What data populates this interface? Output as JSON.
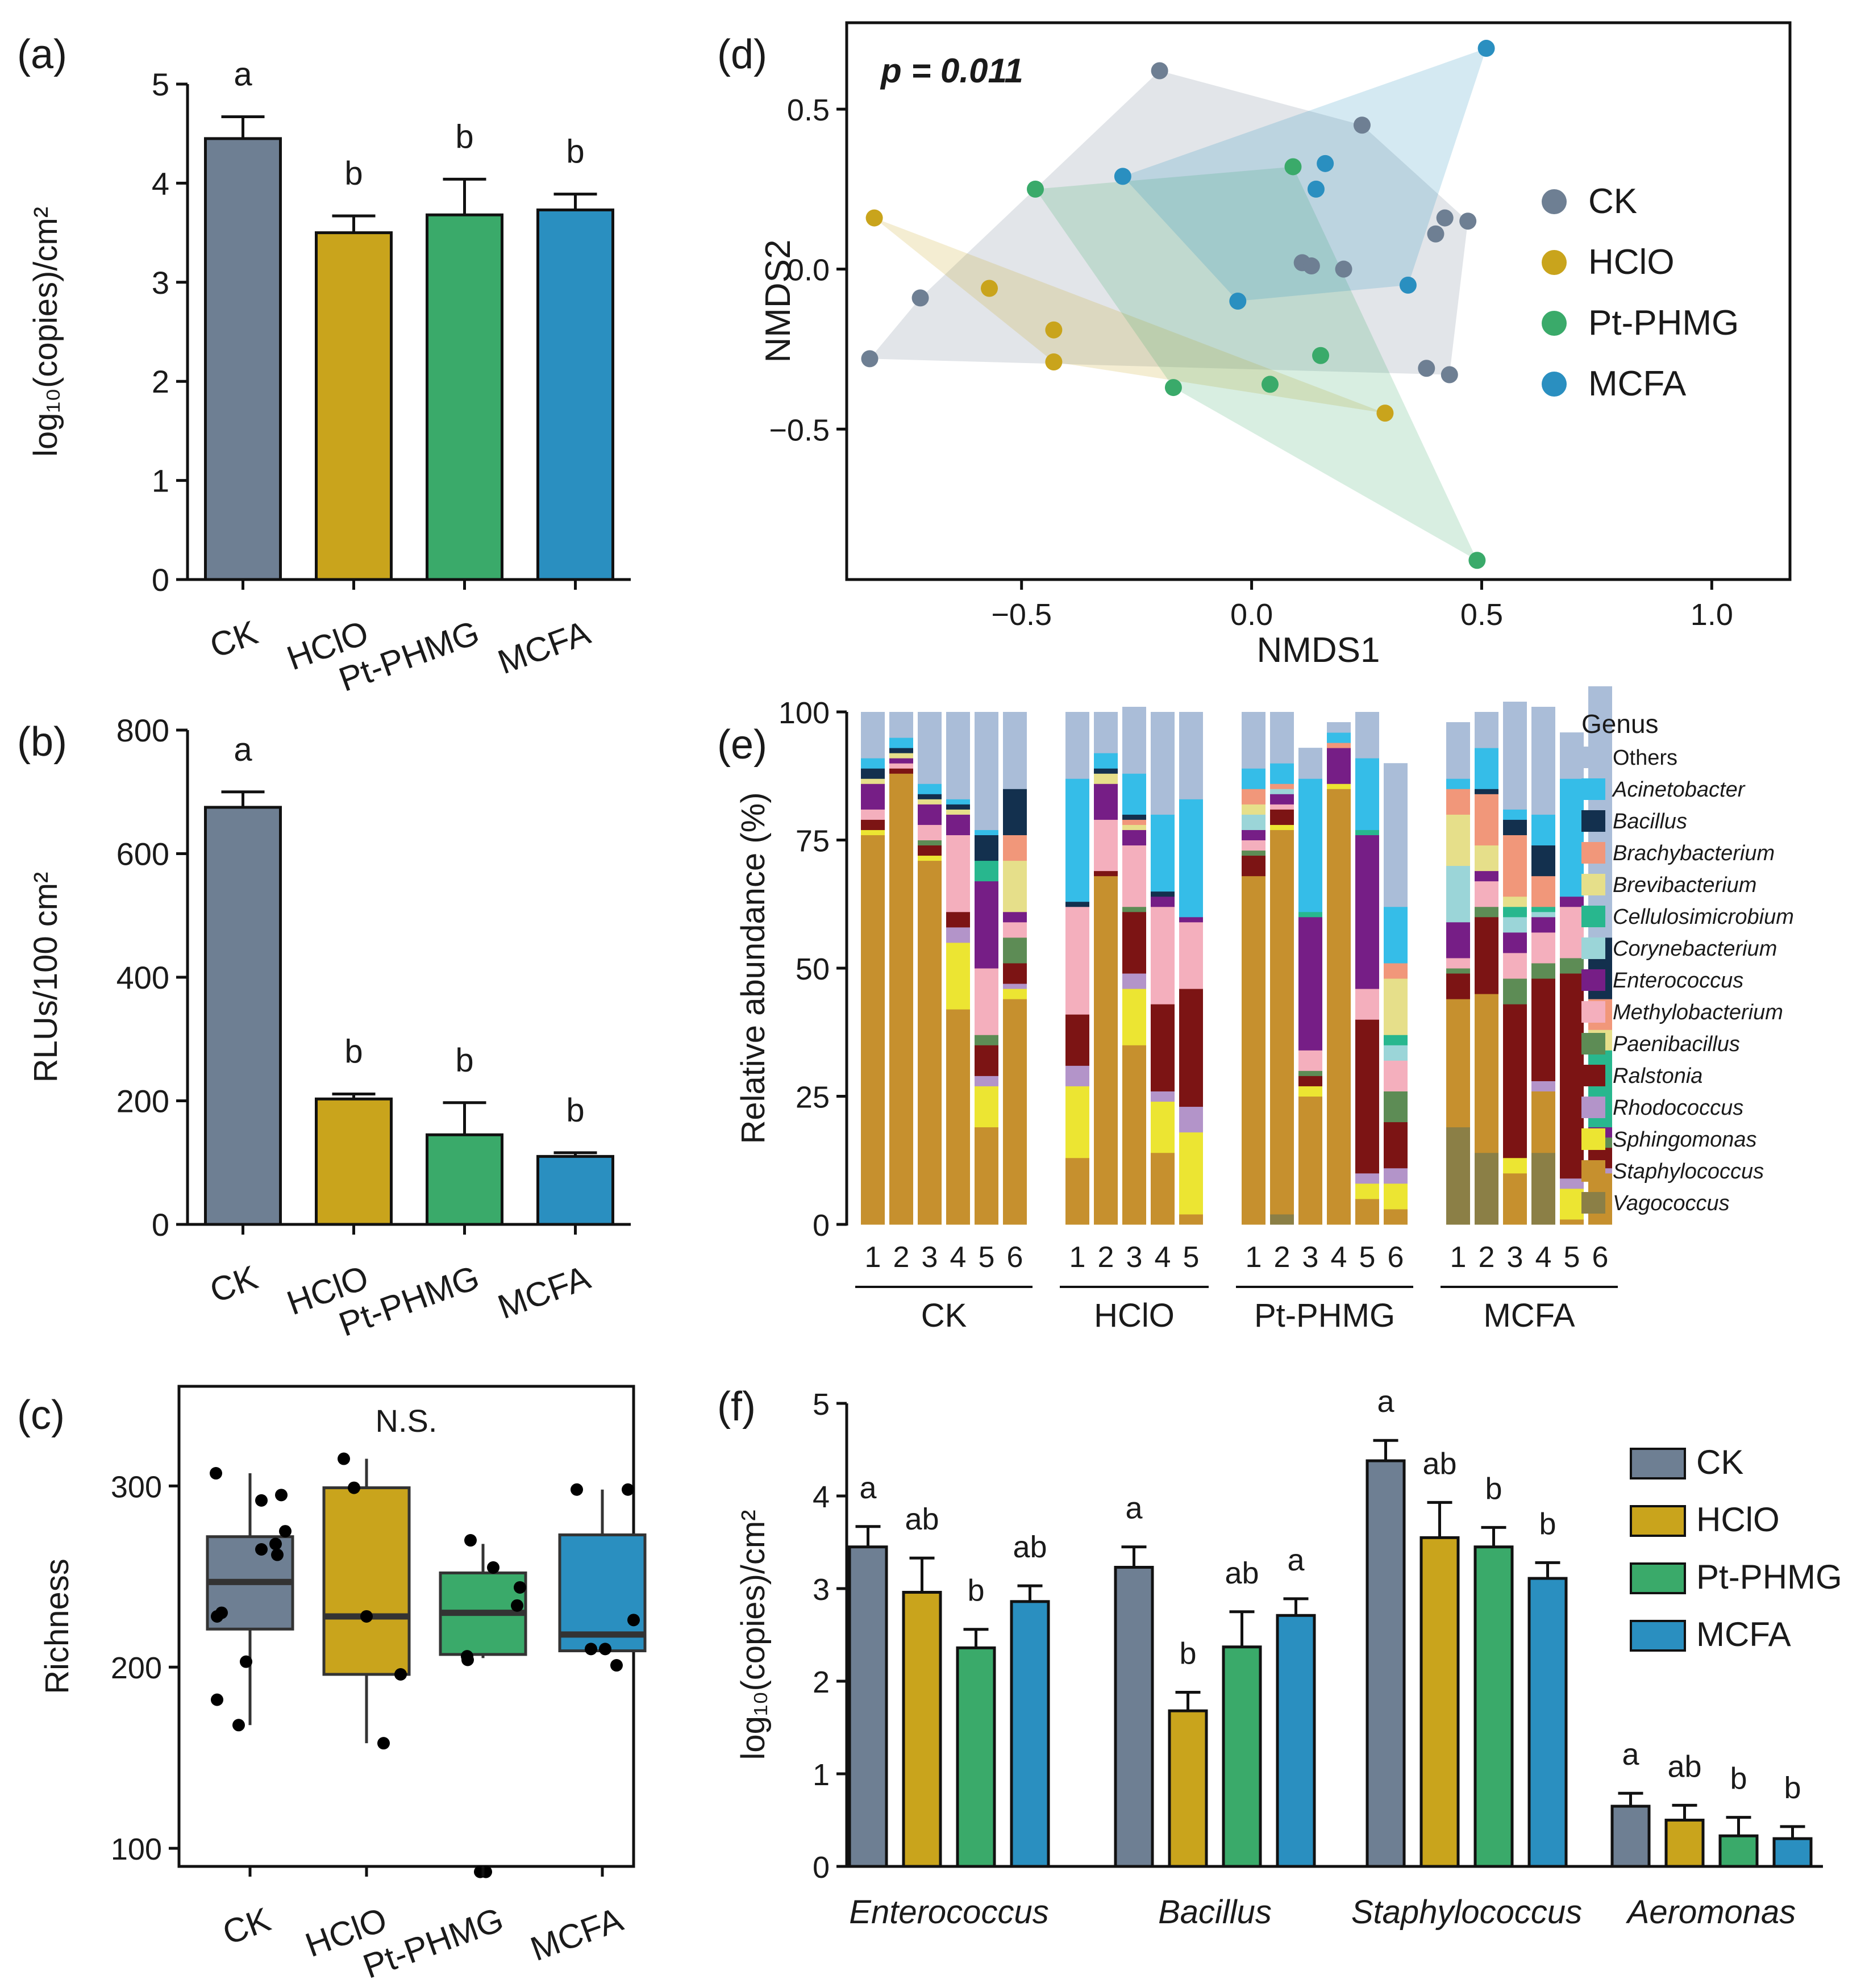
{
  "colors": {
    "CK": "#6e7f93",
    "HClO": "#c9a41c",
    "Pt-PHMG": "#3aaa6a",
    "MCFA": "#2a8fc0"
  },
  "chart_data": [
    {
      "panel": "(a)",
      "type": "bar",
      "ylabel": "log₁₀(copies)/cm²",
      "ylim": [
        0,
        5
      ],
      "yticks": [
        0,
        1,
        2,
        3,
        4,
        5
      ],
      "categories": [
        "CK",
        "HClO",
        "Pt-PHMG",
        "MCFA"
      ],
      "values": [
        4.45,
        3.5,
        3.68,
        3.73
      ],
      "errors": [
        0.22,
        0.17,
        0.36,
        0.16
      ],
      "letters": [
        "a",
        "b",
        "b",
        "b"
      ]
    },
    {
      "panel": "(b)",
      "type": "bar",
      "ylabel": "RLUs/100 cm²",
      "ylim": [
        0,
        800
      ],
      "yticks": [
        0,
        200,
        400,
        600,
        800
      ],
      "categories": [
        "CK",
        "HClO",
        "Pt-PHMG",
        "MCFA"
      ],
      "values": [
        675,
        203,
        145,
        110
      ],
      "errors": [
        25,
        8,
        52,
        6
      ],
      "letters": [
        "a",
        "b",
        "b",
        "b"
      ]
    },
    {
      "panel": "(c)",
      "type": "box",
      "ylabel": "Richness",
      "ylim": [
        90,
        355
      ],
      "yticks": [
        100,
        200,
        300
      ],
      "annotation": "N.S.",
      "categories": [
        "CK",
        "HClO",
        "Pt-PHMG",
        "MCFA"
      ],
      "boxes": [
        {
          "whisker_low": 168,
          "q1": 221,
          "median": 247,
          "q3": 272,
          "whisker_high": 307
        },
        {
          "whisker_low": 158,
          "q1": 196,
          "median": 228,
          "q3": 299,
          "whisker_high": 315
        },
        {
          "whisker_low": 205,
          "q1": 207,
          "median": 230,
          "q3": 252,
          "whisker_high": 268
        },
        {
          "whisker_low": 208,
          "q1": 209,
          "median": 218,
          "q3": 273,
          "whisker_high": 298
        }
      ],
      "points": [
        [
          307,
          295,
          292,
          275,
          268,
          265,
          262,
          230,
          228,
          203,
          182,
          168
        ],
        [
          315,
          299,
          228,
          196,
          158
        ],
        [
          270,
          255,
          244,
          234,
          206,
          204,
          87,
          87
        ],
        [
          298,
          298,
          226,
          210,
          210,
          201
        ]
      ]
    },
    {
      "panel": "(d)",
      "type": "scatter",
      "xlabel": "NMDS1",
      "ylabel": "NMDS2",
      "xlim": [
        -0.88,
        1.17
      ],
      "ylim": [
        -0.97,
        0.77
      ],
      "xticks": [
        -0.5,
        0.0,
        0.5,
        1.0
      ],
      "yticks": [
        -0.5,
        0.0,
        0.5
      ],
      "annotation": "p = 0.011",
      "series": [
        {
          "name": "CK",
          "points": [
            [
              -0.2,
              0.62
            ],
            [
              0.24,
              0.45
            ],
            [
              0.42,
              0.16
            ],
            [
              0.47,
              0.15
            ],
            [
              0.4,
              0.11
            ],
            [
              0.11,
              0.02
            ],
            [
              0.13,
              0.01
            ],
            [
              0.2,
              0.0
            ],
            [
              -0.72,
              -0.09
            ],
            [
              -0.83,
              -0.28
            ],
            [
              0.38,
              -0.31
            ],
            [
              0.43,
              -0.33
            ]
          ]
        },
        {
          "name": "HClO",
          "points": [
            [
              -0.82,
              0.16
            ],
            [
              -0.57,
              -0.06
            ],
            [
              -0.43,
              -0.19
            ],
            [
              -0.43,
              -0.29
            ],
            [
              0.29,
              -0.45
            ]
          ]
        },
        {
          "name": "Pt-PHMG",
          "points": [
            [
              -0.47,
              0.25
            ],
            [
              0.09,
              0.32
            ],
            [
              0.15,
              -0.27
            ],
            [
              -0.17,
              -0.37
            ],
            [
              0.04,
              -0.36
            ],
            [
              0.49,
              -0.91
            ]
          ]
        },
        {
          "name": "MCFA",
          "points": [
            [
              0.51,
              0.69
            ],
            [
              -0.28,
              0.29
            ],
            [
              0.16,
              0.33
            ],
            [
              0.14,
              0.25
            ],
            [
              0.34,
              -0.05
            ],
            [
              -0.03,
              -0.1
            ]
          ]
        }
      ]
    },
    {
      "panel": "(e)",
      "type": "bar",
      "stacked": true,
      "ylabel": "Relative abundance (%)",
      "ylim": [
        0,
        100
      ],
      "yticks": [
        0,
        25,
        50,
        75,
        100
      ],
      "legend_title": "Genus",
      "genera": [
        "Others",
        "Acinetobacter",
        "Bacillus",
        "Brachybacterium",
        "Brevibacterium",
        "Cellulosimicrobium",
        "Corynebacterium",
        "Enterococcus",
        "Methylobacterium",
        "Paenibacillus",
        "Ralstonia",
        "Rhodococcus",
        "Sphingomonas",
        "Staphylococcus",
        "Vagococcus"
      ],
      "genus_colors": [
        "#aabdd8",
        "#35bde8",
        "#13304e",
        "#f1977a",
        "#e6df8a",
        "#28b78e",
        "#9bd5d8",
        "#761e86",
        "#f4afbd",
        "#5d8c55",
        "#7c1414",
        "#b394c9",
        "#ece532",
        "#c6902e",
        "#8b7f46"
      ],
      "groups": [
        {
          "name": "CK",
          "samples": [
            "1",
            "2",
            "3",
            "4",
            "5",
            "6"
          ]
        },
        {
          "name": "HClO",
          "samples": [
            "1",
            "2",
            "3",
            "4",
            "5"
          ]
        },
        {
          "name": "Pt-PHMG",
          "samples": [
            "1",
            "2",
            "3",
            "4",
            "5",
            "6"
          ]
        },
        {
          "name": "MCFA",
          "samples": [
            "1",
            "2",
            "3",
            "4",
            "5",
            "6"
          ]
        }
      ],
      "stacks_bottom_to_top_order": [
        "Vagococcus",
        "Staphylococcus",
        "Sphingomonas",
        "Rhodococcus",
        "Ralstonia",
        "Paenibacillus",
        "Methylobacterium",
        "Enterococcus",
        "Corynebacterium",
        "Cellulosimicrobium",
        "Brevibacterium",
        "Brachybacterium",
        "Bacillus",
        "Acinetobacter",
        "Others"
      ],
      "stacks": [
        [
          [
            0,
            76,
            1,
            0,
            2,
            0,
            2,
            5,
            0,
            0,
            1,
            0,
            2,
            2,
            9
          ],
          [
            0,
            88,
            0,
            0,
            1,
            0,
            1,
            1,
            0,
            0,
            1,
            0,
            1,
            2,
            5
          ],
          [
            0,
            71,
            1,
            0,
            2,
            1,
            3,
            4,
            0,
            0,
            1,
            0,
            1,
            2,
            14
          ],
          [
            0,
            42,
            13,
            3,
            3,
            0,
            15,
            4,
            0,
            0,
            1,
            0,
            1,
            1,
            17
          ],
          [
            0,
            19,
            8,
            2,
            6,
            2,
            13,
            17,
            0,
            4,
            0,
            0,
            5,
            1,
            23
          ],
          [
            0,
            44,
            2,
            1,
            4,
            5,
            3,
            2,
            0,
            0,
            10,
            5,
            9,
            0,
            15
          ]
        ],
        [
          [
            0,
            13,
            14,
            4,
            10,
            0,
            21,
            0,
            0,
            0,
            0,
            0,
            1,
            24,
            13
          ],
          [
            0,
            68,
            0,
            0,
            1,
            0,
            10,
            7,
            0,
            0,
            2,
            0,
            1,
            3,
            8
          ],
          [
            0,
            35,
            11,
            3,
            12,
            1,
            12,
            3,
            0,
            0,
            1,
            1,
            1,
            8,
            13
          ],
          [
            0,
            14,
            10,
            2,
            17,
            0,
            19,
            2,
            0,
            0,
            0,
            0,
            1,
            15,
            20
          ],
          [
            0,
            2,
            16,
            5,
            23,
            0,
            13,
            1,
            0,
            0,
            0,
            0,
            0,
            23,
            17
          ]
        ],
        [
          [
            0,
            68,
            0,
            0,
            4,
            1,
            2,
            2,
            3,
            0,
            2,
            3,
            0,
            4,
            11
          ],
          [
            2,
            75,
            1,
            0,
            3,
            0,
            1,
            2,
            1,
            0,
            0,
            1,
            0,
            4,
            10
          ],
          [
            0,
            25,
            2,
            0,
            2,
            1,
            4,
            26,
            0,
            1,
            0,
            0,
            0,
            26,
            6
          ],
          [
            0,
            85,
            1,
            0,
            0,
            0,
            0,
            7,
            0,
            0,
            0,
            1,
            0,
            2,
            2
          ],
          [
            0,
            5,
            3,
            2,
            30,
            0,
            6,
            30,
            0,
            1,
            0,
            0,
            0,
            14,
            9
          ],
          [
            0,
            3,
            5,
            3,
            9,
            6,
            6,
            0,
            3,
            2,
            11,
            3,
            0,
            11,
            28
          ]
        ],
        [
          [
            19,
            25,
            0,
            0,
            5,
            1,
            2,
            7,
            11,
            0,
            10,
            5,
            0,
            2,
            11
          ],
          [
            14,
            31,
            0,
            0,
            15,
            2,
            5,
            2,
            0,
            0,
            5,
            10,
            1,
            8,
            7
          ],
          [
            0,
            10,
            3,
            0,
            30,
            5,
            5,
            4,
            3,
            2,
            2,
            12,
            3,
            2,
            21
          ],
          [
            14,
            12,
            0,
            2,
            20,
            3,
            6,
            3,
            1,
            1,
            0,
            6,
            6,
            6,
            21
          ],
          [
            0,
            1,
            6,
            2,
            40,
            3,
            10,
            2,
            0,
            0,
            0,
            0,
            0,
            23,
            9
          ],
          [
            0,
            10,
            0,
            1,
            4,
            2,
            0,
            2,
            0,
            15,
            4,
            6,
            12,
            0,
            49
          ]
        ]
      ]
    },
    {
      "panel": "(f)",
      "type": "bar",
      "ylabel": "log₁₀(copies)/cm²",
      "ylim": [
        0,
        5
      ],
      "yticks": [
        0,
        1,
        2,
        3,
        4,
        5
      ],
      "categories": [
        "Enterococcus",
        "Bacillus",
        "Staphylococcus",
        "Aeromonas"
      ],
      "series": [
        {
          "name": "CK",
          "values": [
            3.45,
            3.23,
            4.38,
            0.65
          ],
          "errors": [
            0.22,
            0.22,
            0.22,
            0.14
          ]
        },
        {
          "name": "HClO",
          "values": [
            2.96,
            1.68,
            3.55,
            0.5
          ],
          "errors": [
            0.37,
            0.2,
            0.38,
            0.16
          ]
        },
        {
          "name": "Pt-PHMG",
          "values": [
            2.36,
            2.37,
            3.45,
            0.33
          ],
          "errors": [
            0.2,
            0.38,
            0.21,
            0.2
          ]
        },
        {
          "name": "MCFA",
          "values": [
            2.86,
            2.71,
            3.11,
            0.3
          ],
          "errors": [
            0.17,
            0.18,
            0.17,
            0.13
          ]
        }
      ],
      "letters": [
        [
          "a",
          "ab",
          "b",
          "ab"
        ],
        [
          "a",
          "b",
          "ab",
          "a"
        ],
        [
          "a",
          "ab",
          "b",
          "b"
        ],
        [
          "a",
          "ab",
          "b",
          "b"
        ]
      ]
    }
  ]
}
